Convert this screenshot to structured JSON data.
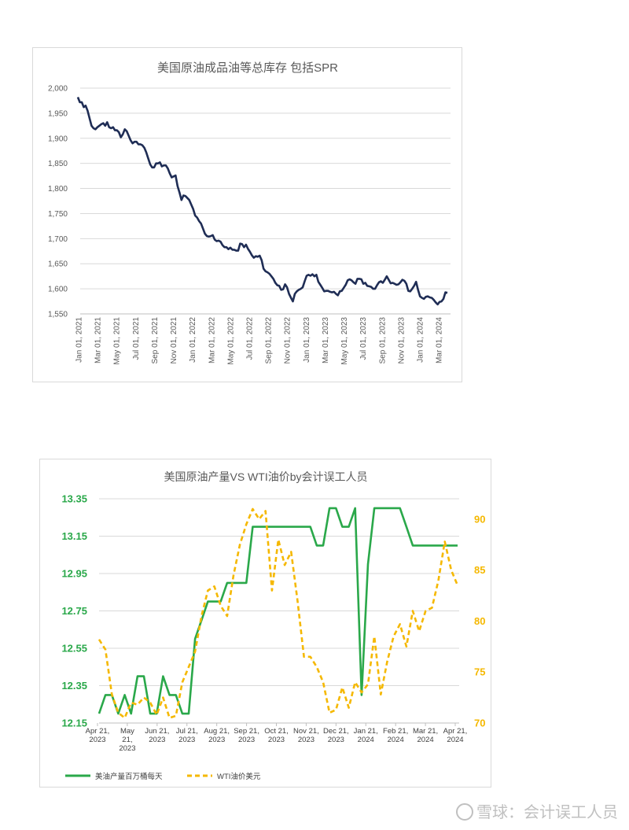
{
  "chart_data": [
    {
      "type": "line",
      "title": "美国原油成品油等总库存 包括SPR",
      "ylim": [
        1550,
        2000
      ],
      "yticks": [
        1550,
        1600,
        1650,
        1700,
        1750,
        1800,
        1850,
        1900,
        1950,
        2000
      ],
      "ytick_labels": [
        "1,550",
        "1,600",
        "1,650",
        "1,700",
        "1,750",
        "1,800",
        "1,850",
        "1,900",
        "1,950",
        "2,000"
      ],
      "xticks": [
        "Jan 01, 2021",
        "Mar 01, 2021",
        "May 01, 2021",
        "Jul 01, 2021",
        "Sep 01, 2021",
        "Nov 01, 2021",
        "Jan 01, 2022",
        "Mar 01, 2022",
        "May 01, 2022",
        "Jul 01, 2022",
        "Sep 01, 2022",
        "Nov 01, 2022",
        "Jan 01, 2023",
        "Mar 01, 2023",
        "May 01, 2023",
        "Jul 01, 2023",
        "Sep 01, 2023",
        "Nov 01, 2023",
        "Jan 01, 2024",
        "Mar 01, 2024"
      ],
      "grid": true,
      "color": "#1f2d55",
      "series": [
        {
          "values": [
            1982,
            1972,
            1972,
            1962,
            1965,
            1955,
            1940,
            1925,
            1920,
            1918,
            1922,
            1925,
            1928,
            1930,
            1925,
            1932,
            1922,
            1920,
            1922,
            1916,
            1916,
            1912,
            1902,
            1908,
            1918,
            1914,
            1905,
            1896,
            1890,
            1893,
            1893,
            1888,
            1888,
            1886,
            1881,
            1872,
            1860,
            1848,
            1842,
            1842,
            1850,
            1850,
            1852,
            1844,
            1846,
            1846,
            1840,
            1830,
            1822,
            1824,
            1826,
            1805,
            1792,
            1777,
            1786,
            1785,
            1781,
            1777,
            1768,
            1759,
            1746,
            1742,
            1735,
            1730,
            1720,
            1710,
            1705,
            1704,
            1705,
            1707,
            1698,
            1695,
            1696,
            1694,
            1687,
            1683,
            1683,
            1679,
            1682,
            1678,
            1678,
            1676,
            1676,
            1690,
            1689,
            1683,
            1688,
            1680,
            1674,
            1667,
            1662,
            1665,
            1664,
            1666,
            1657,
            1640,
            1635,
            1633,
            1630,
            1625,
            1620,
            1612,
            1607,
            1606,
            1598,
            1599,
            1609,
            1603,
            1590,
            1582,
            1575,
            1590,
            1595,
            1598,
            1600,
            1603,
            1615,
            1626,
            1628,
            1626,
            1629,
            1625,
            1628,
            1614,
            1608,
            1602,
            1595,
            1596,
            1596,
            1594,
            1593,
            1594,
            1590,
            1587,
            1595,
            1596,
            1602,
            1608,
            1617,
            1619,
            1617,
            1613,
            1610,
            1620,
            1620,
            1619,
            1610,
            1612,
            1606,
            1605,
            1604,
            1600,
            1600,
            1607,
            1613,
            1615,
            1612,
            1618,
            1625,
            1618,
            1611,
            1612,
            1610,
            1608,
            1609,
            1613,
            1618,
            1616,
            1610,
            1596,
            1595,
            1600,
            1606,
            1614,
            1598,
            1585,
            1582,
            1580,
            1584,
            1585,
            1583,
            1582,
            1578,
            1573,
            1569,
            1574,
            1575,
            1580,
            1593,
            1592
          ]
        }
      ]
    },
    {
      "type": "line",
      "title": "美国原油产量VS WTI油价by会计误工人员",
      "xticks": [
        [
          "Apr 21,",
          "2023"
        ],
        [
          "May",
          "21,",
          "2023"
        ],
        [
          "Jun 21,",
          "2023"
        ],
        [
          "Jul 21,",
          "2023"
        ],
        [
          "Aug 21,",
          "2023"
        ],
        [
          "Sep 21,",
          "2023"
        ],
        [
          "Oct 21,",
          "2023"
        ],
        [
          "Nov 21,",
          "2023"
        ],
        [
          "Dec 21,",
          "2023"
        ],
        [
          "Jan 21,",
          "2024"
        ],
        [
          "Feb 21,",
          "2024"
        ],
        [
          "Mar 21,",
          "2024"
        ],
        [
          "Apr 21,",
          "2024"
        ]
      ],
      "y_left": {
        "ylim": [
          12.15,
          13.35
        ],
        "ticks": [
          "12.15",
          "12.35",
          "12.55",
          "12.75",
          "12.95",
          "13.15",
          "13.35"
        ]
      },
      "y_right": {
        "ylim": [
          70,
          92
        ],
        "ticks": [
          "70",
          "75",
          "80",
          "85",
          "90"
        ]
      },
      "grid": true,
      "legend": "bottom-left",
      "series": [
        {
          "name": "美油产量百万桶每天",
          "axis": "left",
          "color": "#2aa84a",
          "style": "solid",
          "values": [
            12.2,
            12.3,
            12.3,
            12.2,
            12.3,
            12.2,
            12.4,
            12.4,
            12.2,
            12.2,
            12.4,
            12.3,
            12.3,
            12.2,
            12.2,
            12.6,
            12.7,
            12.8,
            12.8,
            12.8,
            12.9,
            12.9,
            12.9,
            12.9,
            13.2,
            13.2,
            13.2,
            13.2,
            13.2,
            13.2,
            13.2,
            13.2,
            13.2,
            13.2,
            13.1,
            13.1,
            13.3,
            13.3,
            13.2,
            13.2,
            13.3,
            12.3,
            13.0,
            13.3,
            13.3,
            13.3,
            13.3,
            13.3,
            13.2,
            13.1,
            13.1,
            13.1,
            13.1,
            13.1,
            13.1,
            13.1,
            13.1
          ]
        },
        {
          "name": "WTI油价美元",
          "axis": "right",
          "color": "#f5b800",
          "style": "dashed",
          "values": [
            78.2,
            77.2,
            72.8,
            71.0,
            70.5,
            72.0,
            71.8,
            72.5,
            72.0,
            70.8,
            72.5,
            70.5,
            70.7,
            74.0,
            75.5,
            77.0,
            80.5,
            83.0,
            83.4,
            81.5,
            80.5,
            84.5,
            87.5,
            89.5,
            91.0,
            90.0,
            90.8,
            83.0,
            88.0,
            85.5,
            86.8,
            82.0,
            76.5,
            76.5,
            75.5,
            74.0,
            71.0,
            71.3,
            73.5,
            71.5,
            74.0,
            73.0,
            73.8,
            78.5,
            72.8,
            76.0,
            78.5,
            79.7,
            77.5,
            81.0,
            79.0,
            81.0,
            81.3,
            84.0,
            87.8,
            85.0,
            83.5
          ]
        }
      ]
    }
  ],
  "watermark": {
    "text": "雪球：会计误工人员"
  }
}
